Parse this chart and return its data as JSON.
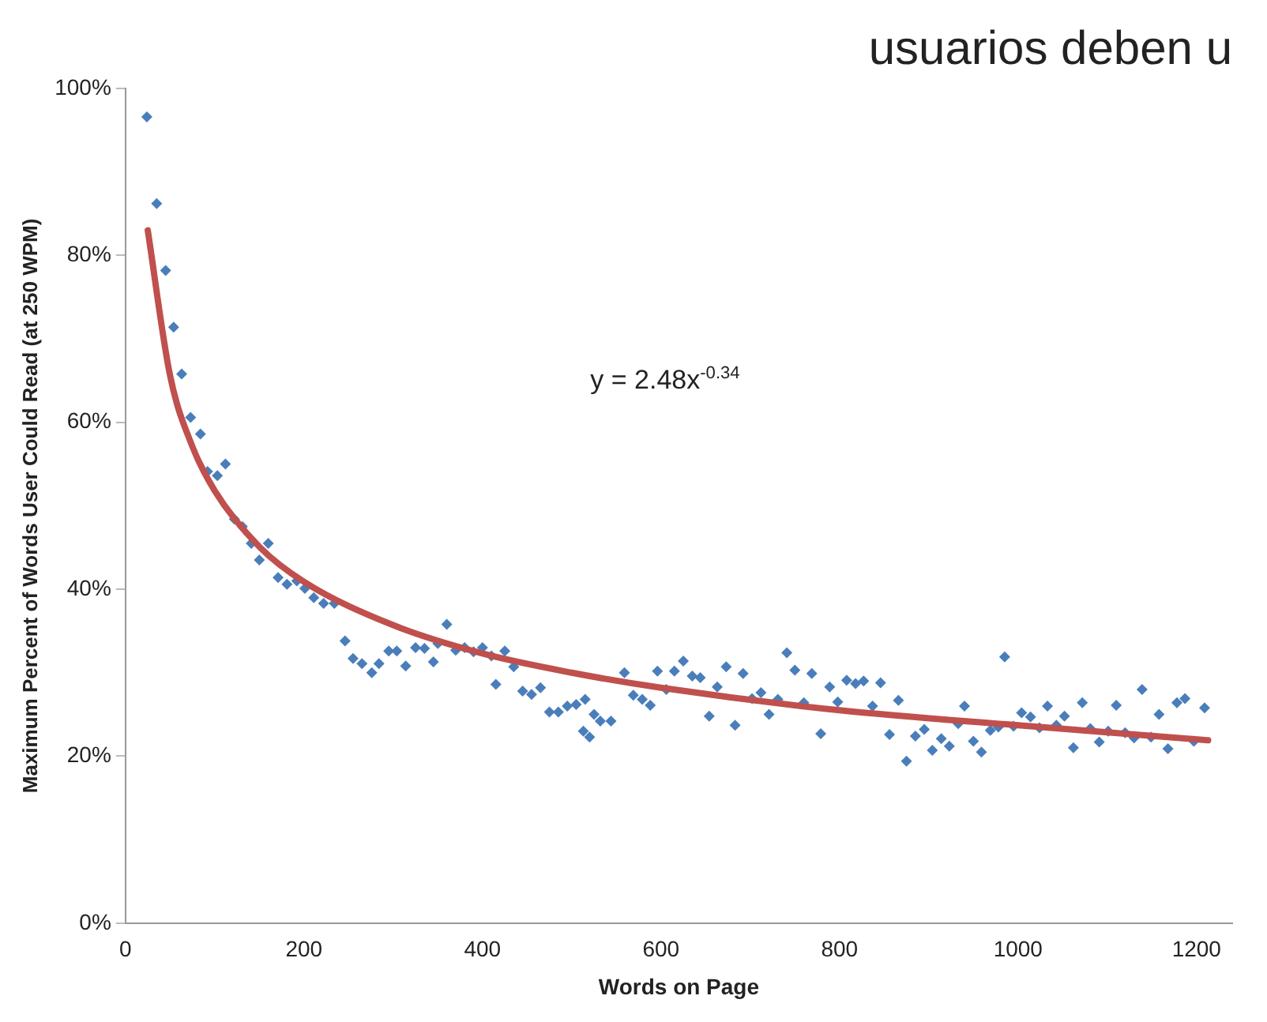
{
  "chart_data": {
    "type": "scatter",
    "title": "usuarios deben u",
    "xlabel": "Words on Page",
    "ylabel": "Maximum Percent of Words User Could Read (at 250 WPM)",
    "annotations": [
      "y = 2.48x$^{-0.34}$"
    ],
    "xlim": [
      0,
      1240
    ],
    "xticks": [
      0,
      200,
      400,
      600,
      800,
      1000,
      1200
    ],
    "ylim": [
      0,
      100
    ],
    "yticks": [
      {
        "value": 0,
        "label": "0%"
      },
      {
        "value": 20,
        "label": "20%"
      },
      {
        "value": 40,
        "label": "40%"
      },
      {
        "value": 60,
        "label": "60%"
      },
      {
        "value": 80,
        "label": "80%"
      },
      {
        "value": 100,
        "label": "100%"
      }
    ],
    "grid": false,
    "legend": false,
    "series": [
      {
        "type": "scatter",
        "marker": "diamond",
        "color": "#4a7ebb",
        "x": [
          24,
          35,
          45,
          54,
          63,
          73,
          84,
          92,
          103,
          112,
          122,
          131,
          141,
          150,
          160,
          171,
          181,
          192,
          201,
          211,
          222,
          234,
          246,
          255,
          265,
          276,
          284,
          295,
          304,
          314,
          325,
          335,
          345,
          350,
          360,
          370,
          380,
          390,
          400,
          410,
          415,
          425,
          435,
          445,
          455,
          465,
          475,
          485,
          495,
          505,
          515,
          525,
          513,
          520,
          532,
          544,
          559,
          569,
          579,
          588,
          596,
          606,
          615,
          625,
          635,
          644,
          654,
          663,
          673,
          683,
          692,
          702,
          712,
          721,
          731,
          741,
          750,
          760,
          769,
          779,
          789,
          798,
          808,
          818,
          827,
          837,
          846,
          856,
          866,
          875,
          885,
          895,
          904,
          914,
          923,
          933,
          940,
          950,
          959,
          969,
          978,
          985,
          995,
          1004,
          1014,
          1024,
          1033,
          1043,
          1052,
          1062,
          1072,
          1081,
          1091,
          1101,
          1110,
          1120,
          1130,
          1139,
          1149,
          1158,
          1168,
          1178,
          1187,
          1197,
          1209
        ],
        "values": [
          96.6,
          86.2,
          78.2,
          71.4,
          65.8,
          60.6,
          58.6,
          54.1,
          53.6,
          55.0,
          48.4,
          47.5,
          45.5,
          43.5,
          45.5,
          41.4,
          40.6,
          41.0,
          40.1,
          39.0,
          38.3,
          38.3,
          33.8,
          31.7,
          31.1,
          30.0,
          31.1,
          32.6,
          32.6,
          30.8,
          33.0,
          32.9,
          31.3,
          33.5,
          35.8,
          32.7,
          33.0,
          32.5,
          33.0,
          32.0,
          28.6,
          32.6,
          30.7,
          27.8,
          27.4,
          28.2,
          25.3,
          25.3,
          26.0,
          26.2,
          26.8,
          25.0,
          23.0,
          22.3,
          24.2,
          24.2,
          30.0,
          27.3,
          26.8,
          26.1,
          30.2,
          28.0,
          30.2,
          31.4,
          29.6,
          29.4,
          24.8,
          28.3,
          30.7,
          23.7,
          29.9,
          26.9,
          27.6,
          25.0,
          26.8,
          32.4,
          30.3,
          26.4,
          29.9,
          22.7,
          28.3,
          26.5,
          29.1,
          28.7,
          29.0,
          26.0,
          28.8,
          22.6,
          26.7,
          19.4,
          22.4,
          23.2,
          20.7,
          22.1,
          21.2,
          23.9,
          26.0,
          21.8,
          20.5,
          23.1,
          23.5,
          31.9,
          23.6,
          25.2,
          24.7,
          23.4,
          26.0,
          23.7,
          24.8,
          21.0,
          26.4,
          23.3,
          21.7,
          23.0,
          26.1,
          22.8,
          22.2,
          28.0,
          22.3,
          25.0,
          20.9,
          26.4,
          26.9,
          21.8,
          25.8
        ]
      },
      {
        "type": "line",
        "marker": "none",
        "color": "#c0504d",
        "x": [
          25,
          50,
          75,
          100,
          150,
          200,
          300,
          400,
          500,
          600,
          800,
          1000,
          1213
        ],
        "values": [
          83.0,
          65.6,
          57.1,
          51.8,
          45.1,
          40.9,
          35.7,
          32.3,
          30.0,
          28.2,
          25.5,
          23.7,
          21.9
        ]
      }
    ]
  }
}
